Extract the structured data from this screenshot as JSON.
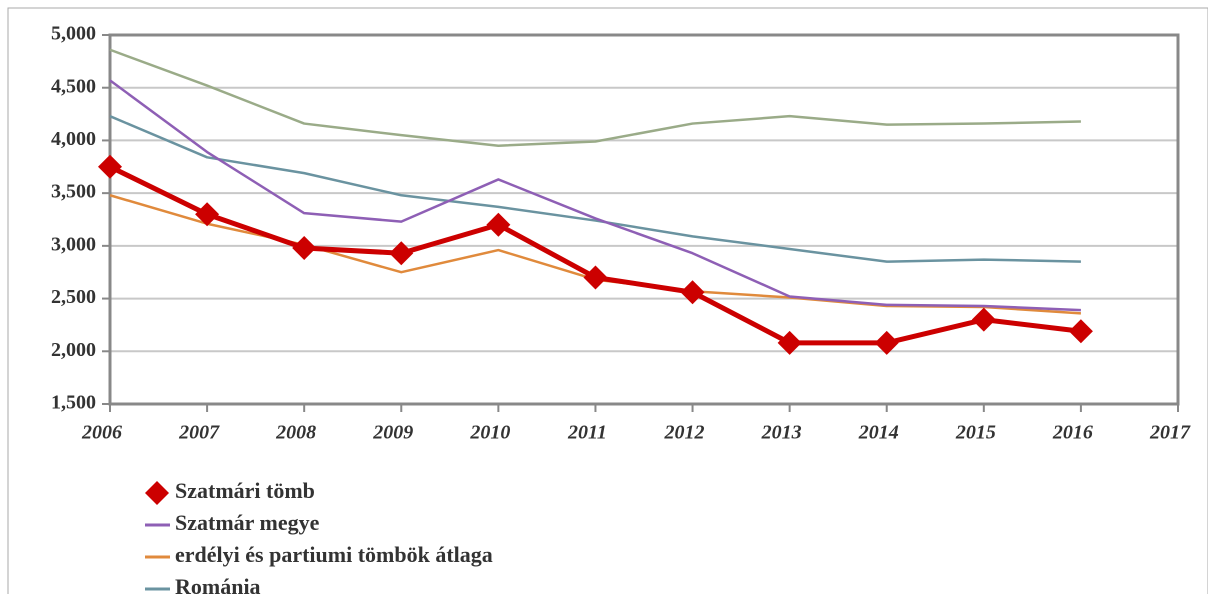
{
  "chart_data": {
    "type": "line",
    "x": [
      2006,
      2007,
      2008,
      2009,
      2010,
      2011,
      2012,
      2013,
      2014,
      2015,
      2016
    ],
    "series": [
      {
        "color": "#9aab88",
        "values": [
          4860,
          4520,
          4160,
          4050,
          3950,
          3990,
          4160,
          4230,
          4150,
          4160,
          4180
        ]
      },
      {
        "name": "Románia",
        "color": "#6a93a0",
        "values": [
          4230,
          3840,
          3690,
          3480,
          3370,
          3240,
          3090,
          2970,
          2850,
          2870,
          2850
        ]
      },
      {
        "name": "erdélyi és partiumi tömbök átlaga",
        "color": "#e08a3c",
        "values": [
          3480,
          3210,
          3010,
          2750,
          2960,
          2680,
          2570,
          2510,
          2430,
          2420,
          2360
        ]
      },
      {
        "name": "Szatmár megye",
        "color": "#8e5fb5",
        "values": [
          4570,
          3890,
          3310,
          3230,
          3630,
          3260,
          2930,
          2520,
          2440,
          2430,
          2390
        ]
      },
      {
        "name": "Szatmári tömb",
        "color": "#cc0000",
        "marker": "diamond",
        "values": [
          3750,
          3300,
          2980,
          2930,
          3200,
          2700,
          2560,
          2080,
          2080,
          2300,
          2190
        ]
      }
    ],
    "xlim": [
      2006,
      2017
    ],
    "xticks": [
      2006,
      2007,
      2008,
      2009,
      2010,
      2011,
      2012,
      2013,
      2014,
      2015,
      2016,
      2017
    ],
    "ylim": [
      1500,
      5000
    ],
    "yticks": [
      {
        "value": 1500,
        "label": "1,500"
      },
      {
        "value": 2000,
        "label": "2,000"
      },
      {
        "value": 2500,
        "label": "2,500"
      },
      {
        "value": 3000,
        "label": "3,000"
      },
      {
        "value": 3500,
        "label": "3,500"
      },
      {
        "value": 4000,
        "label": "4,000"
      },
      {
        "value": 4500,
        "label": "4,500"
      },
      {
        "value": 5000,
        "label": "5,000"
      }
    ],
    "grid": true,
    "legend": "bottom"
  }
}
